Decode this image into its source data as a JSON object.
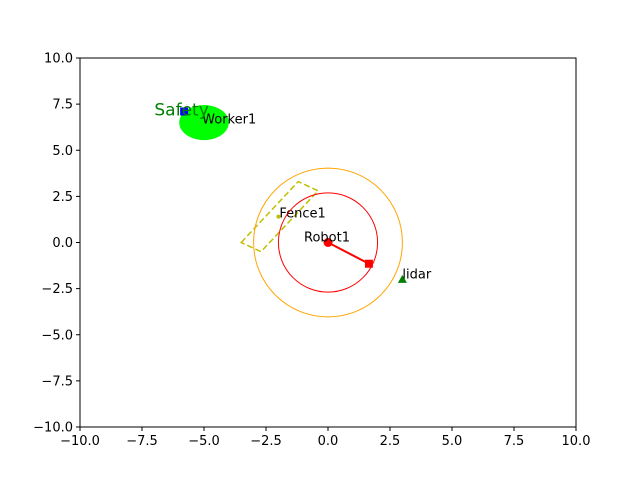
{
  "chart_data": {
    "type": "scatter",
    "title": "",
    "xlabel": "",
    "ylabel": "",
    "xlim": [
      -10,
      10
    ],
    "ylim": [
      -10,
      10
    ],
    "xticks": [
      -10,
      -7.5,
      -5,
      -2.5,
      0,
      2.5,
      5,
      7.5,
      10
    ],
    "yticks": [
      -10,
      -7.5,
      -5,
      -2.5,
      0,
      2.5,
      5,
      7.5,
      10
    ],
    "xtick_labels": [
      "−10.0",
      "−7.5",
      "−5.0",
      "−2.5",
      "0.0",
      "2.5",
      "5.0",
      "7.5",
      "10.0"
    ],
    "ytick_labels": [
      "−10.0",
      "−7.5",
      "−5.0",
      "−2.5",
      "0.0",
      "2.5",
      "5.0",
      "7.5",
      "10.0"
    ],
    "grid": false,
    "colors": {
      "worker_zone": "#00ff00",
      "worker_marker": "#0000ff",
      "safety_text": "#008000",
      "robot": "#ff0000",
      "outer_ring": "#ffa500",
      "fence": "#bfbf00",
      "lidar": "#008000"
    },
    "worker": {
      "label": "Worker1",
      "marker": {
        "x": -5.8,
        "y": 7.1
      },
      "zone": {
        "cx": -5.0,
        "cy": 6.5,
        "rx": 1.0,
        "ry": 0.95
      }
    },
    "safety_label": {
      "text": "Safety",
      "x": -7.0,
      "y": 7.2
    },
    "robot": {
      "label": "Robot1",
      "base": {
        "x": 0.0,
        "y": 0.0
      },
      "end_effector": {
        "x": 1.65,
        "y": -1.15
      },
      "inner_radius": 2.0,
      "outer_radius": 3.0
    },
    "fence": {
      "label": "Fence1",
      "anchor": {
        "x": -2.0,
        "y": 1.4
      },
      "corners": [
        [
          -3.5,
          0.0
        ],
        [
          -1.2,
          3.3
        ],
        [
          -0.4,
          2.8
        ],
        [
          -2.7,
          -0.5
        ]
      ]
    },
    "lidar": {
      "label": "lidar",
      "x": 3.0,
      "y": -2.0
    }
  }
}
